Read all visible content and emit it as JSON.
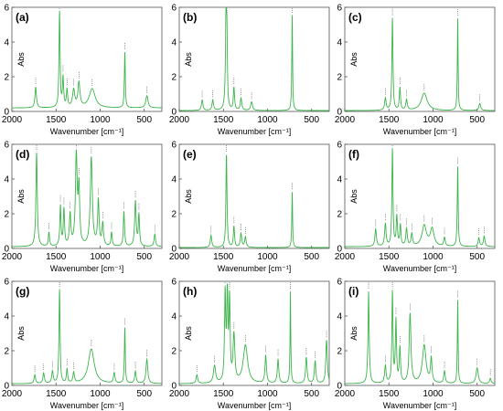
{
  "figure": {
    "line_color": "#3cb44b",
    "axis_color": "#555555",
    "tick_color": "#555555",
    "label_color": "#000000"
  },
  "chart_data": [
    {
      "type": "line",
      "panel_label": "(a)",
      "xlabel": "Wavenumber [cm⁻¹]",
      "ylabel": "Abs",
      "xlim": [
        2000,
        300
      ],
      "ylim": [
        0,
        6
      ],
      "xticks": [
        2000,
        1500,
        1000,
        500
      ],
      "xtick_labels": [
        "2000",
        "1500",
        "1000",
        "500"
      ],
      "yticks": [
        0,
        2,
        4,
        6
      ],
      "ytick_labels": [
        "0",
        "2",
        "4",
        "6"
      ],
      "baseline": 0.2,
      "peaks": [
        [
          1730,
          1.2,
          10
        ],
        [
          1460,
          5.5,
          7
        ],
        [
          1420,
          1.7,
          8
        ],
        [
          1375,
          1.0,
          8
        ],
        [
          1300,
          1.0,
          15
        ],
        [
          1240,
          1.4,
          14
        ],
        [
          1090,
          1.1,
          40
        ],
        [
          720,
          3.2,
          6
        ],
        [
          470,
          0.7,
          15
        ]
      ]
    },
    {
      "type": "line",
      "panel_label": "(b)",
      "xlabel": "Wavenumber [cm⁻¹]",
      "ylabel": "Abs",
      "xlim": [
        2000,
        300
      ],
      "ylim": [
        0,
        6
      ],
      "xticks": [
        2000,
        1500,
        1000,
        500
      ],
      "xtick_labels": [
        "2000",
        "1500",
        "1000",
        "500"
      ],
      "yticks": [
        0,
        2,
        4,
        6
      ],
      "ytick_labels": [
        "0",
        "2",
        "4",
        "6"
      ],
      "baseline": 0.05,
      "peaks": [
        [
          1740,
          0.6,
          10
        ],
        [
          1620,
          0.6,
          10
        ],
        [
          1470,
          5.2,
          8
        ],
        [
          1460,
          3.4,
          6
        ],
        [
          1380,
          1.3,
          8
        ],
        [
          1300,
          0.7,
          10
        ],
        [
          1180,
          0.5,
          12
        ],
        [
          720,
          5.5,
          5
        ]
      ]
    },
    {
      "type": "line",
      "panel_label": "(c)",
      "xlabel": "Wavenumber [cm⁻¹]",
      "ylabel": "Abs",
      "xlim": [
        2000,
        300
      ],
      "ylim": [
        0,
        6
      ],
      "xticks": [
        2000,
        1500,
        1000,
        500
      ],
      "xtick_labels": [
        "2000",
        "1500",
        "1000",
        "500"
      ],
      "yticks": [
        0,
        2,
        4,
        6
      ],
      "ytick_labels": [
        "0",
        "2",
        "4",
        "6"
      ],
      "baseline": 0.05,
      "peaks": [
        [
          1540,
          0.7,
          10
        ],
        [
          1460,
          5.3,
          7
        ],
        [
          1375,
          1.3,
          8
        ],
        [
          1300,
          0.6,
          10
        ],
        [
          1100,
          1.0,
          40
        ],
        [
          720,
          5.3,
          5
        ],
        [
          470,
          0.4,
          12
        ]
      ]
    },
    {
      "type": "line",
      "panel_label": "(d)",
      "xlabel": "Wavenumber [cm⁻¹]",
      "ylabel": "Abs",
      "xlim": [
        2000,
        300
      ],
      "ylim": [
        0,
        6
      ],
      "xticks": [
        2000,
        1500,
        1000,
        500
      ],
      "xtick_labels": [
        "2000",
        "1500",
        "1000",
        "500"
      ],
      "yticks": [
        0,
        2,
        4,
        6
      ],
      "ytick_labels": [
        "0",
        "2",
        "4",
        "6"
      ],
      "baseline": 0.1,
      "peaks": [
        [
          1720,
          5.4,
          9
        ],
        [
          1580,
          0.8,
          8
        ],
        [
          1450,
          2.3,
          8
        ],
        [
          1410,
          2.1,
          8
        ],
        [
          1340,
          1.8,
          10
        ],
        [
          1270,
          5.2,
          12
        ],
        [
          1240,
          3.2,
          10
        ],
        [
          1100,
          5.1,
          14
        ],
        [
          1020,
          2.6,
          10
        ],
        [
          970,
          1.3,
          10
        ],
        [
          870,
          0.8,
          8
        ],
        [
          730,
          2.0,
          8
        ],
        [
          600,
          2.6,
          10
        ],
        [
          560,
          1.8,
          8
        ],
        [
          380,
          0.7,
          10
        ]
      ]
    },
    {
      "type": "line",
      "panel_label": "(e)",
      "xlabel": "Wavenumber [cm⁻¹]",
      "ylabel": "Abs",
      "xlim": [
        2000,
        300
      ],
      "ylim": [
        0,
        6
      ],
      "xticks": [
        2000,
        1500,
        1000,
        500
      ],
      "xtick_labels": [
        "2000",
        "1500",
        "1000",
        "500"
      ],
      "yticks": [
        0,
        2,
        4,
        6
      ],
      "ytick_labels": [
        "0",
        "2",
        "4",
        "6"
      ],
      "baseline": 0.05,
      "peaks": [
        [
          1640,
          0.7,
          10
        ],
        [
          1465,
          5.4,
          7
        ],
        [
          1380,
          1.2,
          8
        ],
        [
          1300,
          0.8,
          10
        ],
        [
          1250,
          0.6,
          10
        ],
        [
          720,
          3.2,
          5
        ]
      ]
    },
    {
      "type": "line",
      "panel_label": "(f)",
      "xlabel": "Wavenumber [cm⁻¹]",
      "ylabel": "Abs",
      "xlim": [
        2000,
        300
      ],
      "ylim": [
        0,
        6
      ],
      "xticks": [
        2000,
        1500,
        1000,
        500
      ],
      "xtick_labels": [
        "2000",
        "1500",
        "1000",
        "500"
      ],
      "yticks": [
        0,
        2,
        4,
        6
      ],
      "ytick_labels": [
        "0",
        "2",
        "4",
        "6"
      ],
      "baseline": 0.1,
      "peaks": [
        [
          1650,
          1.0,
          10
        ],
        [
          1540,
          1.3,
          10
        ],
        [
          1460,
          5.6,
          7
        ],
        [
          1410,
          1.7,
          8
        ],
        [
          1370,
          1.2,
          8
        ],
        [
          1300,
          1.0,
          10
        ],
        [
          1240,
          0.7,
          10
        ],
        [
          1100,
          1.2,
          30
        ],
        [
          1010,
          1.0,
          25
        ],
        [
          870,
          0.5,
          10
        ],
        [
          720,
          4.6,
          6
        ],
        [
          480,
          0.5,
          10
        ],
        [
          420,
          0.6,
          10
        ]
      ]
    },
    {
      "type": "line",
      "panel_label": "(g)",
      "xlabel": "Wavenumber [cm⁻¹]",
      "ylabel": "Abs",
      "xlim": [
        2000,
        300
      ],
      "ylim": [
        0,
        6
      ],
      "xticks": [
        2000,
        1500,
        1000,
        500
      ],
      "xtick_labels": [
        "2000",
        "1500",
        "1000",
        "500"
      ],
      "yticks": [
        0,
        2,
        4,
        6
      ],
      "ytick_labels": [
        "0",
        "2",
        "4",
        "6"
      ],
      "baseline": 0.1,
      "peaks": [
        [
          1740,
          0.5,
          10
        ],
        [
          1640,
          0.6,
          10
        ],
        [
          1540,
          0.7,
          10
        ],
        [
          1460,
          5.4,
          7
        ],
        [
          1375,
          0.8,
          8
        ],
        [
          1300,
          0.6,
          10
        ],
        [
          1100,
          2.0,
          40
        ],
        [
          840,
          0.6,
          10
        ],
        [
          720,
          3.2,
          6
        ],
        [
          600,
          0.7,
          10
        ],
        [
          470,
          1.4,
          12
        ]
      ]
    },
    {
      "type": "line",
      "panel_label": "(h)",
      "xlabel": "Wavenumber [cm⁻¹]",
      "ylabel": "Abs",
      "xlim": [
        2000,
        300
      ],
      "ylim": [
        0,
        6
      ],
      "xticks": [
        2000,
        1500,
        1000,
        500
      ],
      "xtick_labels": [
        "2000",
        "1500",
        "1000",
        "500"
      ],
      "yticks": [
        0,
        2,
        4,
        6
      ],
      "ytick_labels": [
        "0",
        "2",
        "4",
        "6"
      ],
      "baseline": 0.1,
      "peaks": [
        [
          1800,
          0.5,
          10
        ],
        [
          1600,
          1.0,
          15
        ],
        [
          1480,
          5.0,
          8
        ],
        [
          1455,
          4.8,
          8
        ],
        [
          1430,
          4.6,
          8
        ],
        [
          1380,
          2.7,
          12
        ],
        [
          1250,
          2.2,
          30
        ],
        [
          1020,
          1.6,
          10
        ],
        [
          880,
          1.4,
          10
        ],
        [
          740,
          5.3,
          5
        ],
        [
          560,
          1.5,
          10
        ],
        [
          460,
          1.3,
          10
        ],
        [
          330,
          2.5,
          10
        ]
      ]
    },
    {
      "type": "line",
      "panel_label": "(i)",
      "xlabel": "Wavenumber [cm⁻¹]",
      "ylabel": "Abs",
      "xlim": [
        2000,
        300
      ],
      "ylim": [
        0,
        6
      ],
      "xticks": [
        2000,
        1500,
        1000,
        500
      ],
      "xtick_labels": [
        "2000",
        "1500",
        "1000",
        "500"
      ],
      "yticks": [
        0,
        2,
        4,
        6
      ],
      "ytick_labels": [
        "0",
        "2",
        "4",
        "6"
      ],
      "baseline": 0.1,
      "peaks": [
        [
          1730,
          5.3,
          8
        ],
        [
          1540,
          1.0,
          10
        ],
        [
          1460,
          5.2,
          7
        ],
        [
          1420,
          3.6,
          8
        ],
        [
          1375,
          2.0,
          8
        ],
        [
          1260,
          4.0,
          12
        ],
        [
          1100,
          2.2,
          25
        ],
        [
          1020,
          1.4,
          10
        ],
        [
          870,
          0.7,
          10
        ],
        [
          720,
          4.8,
          5
        ],
        [
          500,
          0.9,
          15
        ],
        [
          350,
          0.3,
          10
        ]
      ]
    }
  ]
}
